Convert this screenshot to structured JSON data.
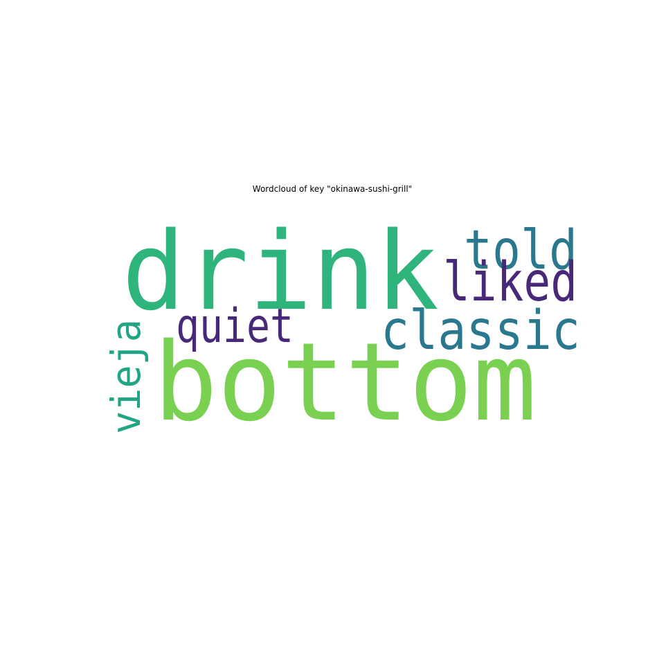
{
  "title": "Wordcloud of key \"okinawa-sushi-grill\"",
  "words": [
    {
      "text": "drink",
      "color": "#2fb47c",
      "orientation": "horizontal"
    },
    {
      "text": "bottom",
      "color": "#7ad151",
      "orientation": "horizontal"
    },
    {
      "text": "told",
      "color": "#2a788e",
      "orientation": "horizontal"
    },
    {
      "text": "liked",
      "color": "#482878",
      "orientation": "horizontal"
    },
    {
      "text": "classic",
      "color": "#2a788e",
      "orientation": "horizontal"
    },
    {
      "text": "quiet",
      "color": "#482878",
      "orientation": "horizontal"
    },
    {
      "text": "vieja",
      "color": "#21a585",
      "orientation": "vertical"
    }
  ]
}
